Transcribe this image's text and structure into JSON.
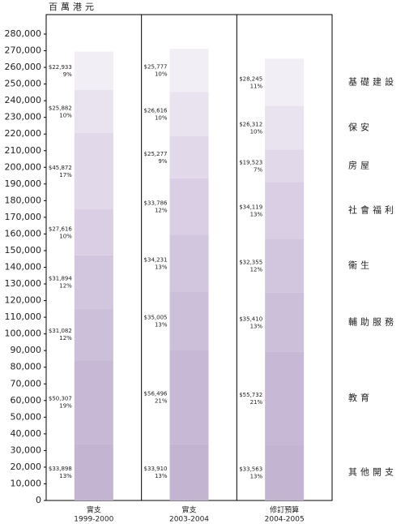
{
  "chart_data": {
    "type": "stacked-bar",
    "unit_label": "百萬港元",
    "categories": [
      "實支",
      "實支",
      "修訂預算"
    ],
    "category_years": [
      "1999-2000",
      "2003-2004",
      "2004-2005"
    ],
    "ylim": [
      0,
      280000
    ],
    "yticks": [
      {
        "value": 0,
        "label": "0"
      },
      {
        "value": 10000,
        "label": "10,000"
      },
      {
        "value": 20000,
        "label": "20,000"
      },
      {
        "value": 30000,
        "label": "30,000"
      },
      {
        "value": 40000,
        "label": "40,000"
      },
      {
        "value": 50000,
        "label": "50,000"
      },
      {
        "value": 60000,
        "label": "60,000"
      },
      {
        "value": 70000,
        "label": "70,000"
      },
      {
        "value": 80000,
        "label": "80,000"
      },
      {
        "value": 90000,
        "label": "90,000"
      },
      {
        "value": 100000,
        "label": "100,000"
      },
      {
        "value": 110000,
        "label": "110,000"
      },
      {
        "value": 120000,
        "label": "120,000"
      },
      {
        "value": 130000,
        "label": "130,000"
      },
      {
        "value": 140000,
        "label": "140,000"
      },
      {
        "value": 150000,
        "label": "150,000"
      },
      {
        "value": 160000,
        "label": "160,000"
      },
      {
        "value": 170000,
        "label": "170,000"
      },
      {
        "value": 180000,
        "label": "180,000"
      },
      {
        "value": 190000,
        "label": "190,000"
      },
      {
        "value": 200000,
        "label": "200,000"
      },
      {
        "value": 210000,
        "label": "210,000"
      },
      {
        "value": 220000,
        "label": "220,000"
      },
      {
        "value": 230000,
        "label": "230,000"
      },
      {
        "value": 240000,
        "label": "240,000"
      },
      {
        "value": 250000,
        "label": "250,000"
      },
      {
        "value": 260000,
        "label": "260,000"
      },
      {
        "value": 270000,
        "label": "270,000"
      },
      {
        "value": 280000,
        "label": "280,000"
      }
    ],
    "series": [
      {
        "name": "其他開支",
        "color": "#c3b4d2",
        "values": [
          33898,
          33910,
          33563
        ],
        "value_labels": [
          "$33,898",
          "$33,910",
          "$33,563"
        ],
        "percent_labels": [
          "13%",
          "13%",
          "13%"
        ]
      },
      {
        "name": "教育",
        "color": "#c7b9d5",
        "values": [
          50307,
          56496,
          55732
        ],
        "value_labels": [
          "$50,307",
          "$56,496",
          "$55,732"
        ],
        "percent_labels": [
          "19%",
          "21%",
          "21%"
        ]
      },
      {
        "name": "輔助服務",
        "color": "#ccbfd9",
        "values": [
          31082,
          35005,
          35410
        ],
        "value_labels": [
          "$31,082",
          "$35,005",
          "$35,410"
        ],
        "percent_labels": [
          "12%",
          "13%",
          "13%"
        ]
      },
      {
        "name": "衞生",
        "color": "#d2c6de",
        "values": [
          31894,
          34231,
          32355
        ],
        "value_labels": [
          "$31,894",
          "$34,231",
          "$32,355"
        ],
        "percent_labels": [
          "12%",
          "13%",
          "12%"
        ]
      },
      {
        "name": "社會福利",
        "color": "#d9cee4",
        "values": [
          27616,
          33786,
          34119
        ],
        "value_labels": [
          "$27,616",
          "$33,786",
          "$34,119"
        ],
        "percent_labels": [
          "10%",
          "12%",
          "13%"
        ]
      },
      {
        "name": "房屋",
        "color": "#e1d8ea",
        "values": [
          45872,
          25277,
          19523
        ],
        "value_labels": [
          "$45,872",
          "$25,277",
          "$19,523"
        ],
        "percent_labels": [
          "17%",
          "9%",
          "7%"
        ]
      },
      {
        "name": "保安",
        "color": "#e9e2ef",
        "values": [
          25882,
          26616,
          26312
        ],
        "value_labels": [
          "$25,882",
          "$26,616",
          "$26,312"
        ],
        "percent_labels": [
          "10%",
          "10%",
          "10%"
        ]
      },
      {
        "name": "基礎建設",
        "color": "#f2eef5",
        "values": [
          22933,
          25777,
          28245
        ],
        "value_labels": [
          "$22,933",
          "$25,777",
          "$28,245"
        ],
        "percent_labels": [
          "9%",
          "10%",
          "11%"
        ]
      }
    ]
  }
}
